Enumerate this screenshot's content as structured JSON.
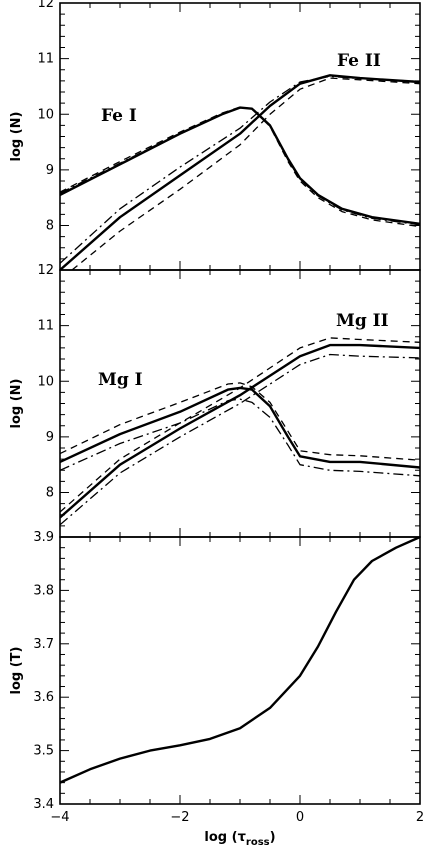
{
  "chart_data": [
    {
      "type": "line",
      "ylabel": "log (N)",
      "xlabel": "",
      "xlim": [
        -4,
        2
      ],
      "ylim": [
        7.2,
        12
      ],
      "yticks": [
        {
          "v": 12,
          "label": "12"
        },
        {
          "v": 11,
          "label": "11"
        },
        {
          "v": 10,
          "label": "10"
        },
        {
          "v": 9,
          "label": "9"
        },
        {
          "v": 8,
          "label": "8"
        }
      ],
      "annotations": [
        {
          "text": "Fe I",
          "x": -3.35,
          "y": 10.0
        },
        {
          "text": "Fe II",
          "x": 0.55,
          "y": 10.95
        }
      ],
      "series": [
        {
          "style": "solid",
          "x": [
            -4,
            -3,
            -2,
            -1.3,
            -1,
            -0.8,
            -0.5,
            -0.2,
            0,
            0.3,
            0.7,
            1.2,
            2
          ],
          "y": [
            8.55,
            9.1,
            9.65,
            10.0,
            10.12,
            10.1,
            9.8,
            9.2,
            8.85,
            8.55,
            8.3,
            8.15,
            8.03
          ]
        },
        {
          "style": "dash",
          "x": [
            -4,
            -3,
            -2,
            -1.3,
            -1,
            -0.8,
            -0.5,
            -0.2,
            0,
            0.3,
            0.7,
            1.2,
            2
          ],
          "y": [
            8.6,
            9.15,
            9.68,
            10.02,
            10.13,
            10.1,
            9.78,
            9.15,
            8.8,
            8.5,
            8.25,
            8.1,
            7.98
          ]
        },
        {
          "style": "dashdot",
          "x": [
            -4,
            -3,
            -2,
            -1.3,
            -1,
            -0.8,
            -0.5,
            -0.2,
            0,
            0.3,
            0.7,
            1.2,
            2
          ],
          "y": [
            8.58,
            9.12,
            9.66,
            10.01,
            10.12,
            10.1,
            9.79,
            9.18,
            8.83,
            8.53,
            8.28,
            8.13,
            8.01
          ]
        },
        {
          "style": "solid",
          "x": [
            -4,
            -3,
            -2,
            -1,
            -0.5,
            0,
            0.5,
            1,
            2
          ],
          "y": [
            7.2,
            8.15,
            8.9,
            9.65,
            10.15,
            10.55,
            10.7,
            10.65,
            10.58
          ]
        },
        {
          "style": "dash",
          "x": [
            -3.8,
            -3,
            -2,
            -1,
            -0.5,
            0,
            0.5,
            1,
            2
          ],
          "y": [
            7.2,
            7.9,
            8.65,
            9.45,
            10.0,
            10.45,
            10.65,
            10.62,
            10.55
          ]
        },
        {
          "style": "dashdot",
          "x": [
            -4,
            -3,
            -2,
            -1,
            -0.5,
            0,
            0.5,
            1,
            2
          ],
          "y": [
            7.32,
            8.3,
            9.05,
            9.75,
            10.22,
            10.58,
            10.68,
            10.64,
            10.59
          ]
        }
      ]
    },
    {
      "type": "line",
      "ylabel": "log (N)",
      "xlabel": "",
      "xlim": [
        -4,
        2
      ],
      "ylim": [
        7.2,
        12
      ],
      "yticks": [
        {
          "v": 12,
          "label": "12"
        },
        {
          "v": 11,
          "label": "11"
        },
        {
          "v": 10,
          "label": "10"
        },
        {
          "v": 9,
          "label": "9"
        },
        {
          "v": 8,
          "label": "8"
        }
      ],
      "annotations": [
        {
          "text": "Mg I",
          "x": -3.4,
          "y": 9.9
        },
        {
          "text": "Mg II",
          "x": 0.55,
          "y": 11.0
        }
      ],
      "series": [
        {
          "style": "solid",
          "x": [
            -4,
            -3,
            -2,
            -1.2,
            -1,
            -0.8,
            -0.5,
            -0.2,
            0,
            0.5,
            1,
            2
          ],
          "y": [
            8.55,
            9.05,
            9.45,
            9.85,
            9.88,
            9.85,
            9.55,
            9.0,
            8.65,
            8.55,
            8.55,
            8.45
          ]
        },
        {
          "style": "dash",
          "x": [
            -4,
            -3,
            -2,
            -1.2,
            -1,
            -0.8,
            -0.5,
            -0.2,
            0,
            0.5,
            1,
            2
          ],
          "y": [
            8.7,
            9.22,
            9.62,
            9.95,
            9.97,
            9.9,
            9.62,
            9.1,
            8.75,
            8.68,
            8.66,
            8.58
          ]
        },
        {
          "style": "dashdot",
          "x": [
            -4,
            -3,
            -2,
            -1.2,
            -1,
            -0.8,
            -0.5,
            -0.2,
            0,
            0.5,
            1,
            2
          ],
          "y": [
            8.4,
            8.88,
            9.25,
            9.65,
            9.68,
            9.62,
            9.35,
            8.85,
            8.5,
            8.4,
            8.38,
            8.3
          ]
        },
        {
          "style": "solid",
          "x": [
            -4,
            -3,
            -2,
            -1,
            0,
            0.5,
            1,
            2
          ],
          "y": [
            7.55,
            8.5,
            9.15,
            9.75,
            10.45,
            10.65,
            10.65,
            10.6
          ]
        },
        {
          "style": "dash",
          "x": [
            -4,
            -3,
            -2,
            -1,
            0,
            0.5,
            1,
            2
          ],
          "y": [
            7.65,
            8.6,
            9.25,
            9.88,
            10.6,
            10.78,
            10.75,
            10.7
          ]
        },
        {
          "style": "dashdot",
          "x": [
            -4,
            -3,
            -2,
            -1,
            0,
            0.5,
            1,
            2
          ],
          "y": [
            7.42,
            8.35,
            9.0,
            9.6,
            10.3,
            10.48,
            10.45,
            10.42
          ]
        }
      ]
    },
    {
      "type": "line",
      "ylabel": "log (T)",
      "xlabel": "log (τ",
      "xlabel_sub": "ross",
      "xlabel_end": ")",
      "xlim": [
        -4,
        2
      ],
      "ylim": [
        3.4,
        3.9
      ],
      "xticks": [
        {
          "v": -4,
          "label": "−4"
        },
        {
          "v": -2,
          "label": "−2"
        },
        {
          "v": 0,
          "label": "0"
        },
        {
          "v": 2,
          "label": "2"
        }
      ],
      "yticks": [
        {
          "v": 3.9,
          "label": "3.9"
        },
        {
          "v": 3.8,
          "label": "3.8"
        },
        {
          "v": 3.7,
          "label": "3.7"
        },
        {
          "v": 3.6,
          "label": "3.6"
        },
        {
          "v": 3.5,
          "label": "3.5"
        },
        {
          "v": 3.4,
          "label": "3.4"
        }
      ],
      "annotations": [],
      "series": [
        {
          "style": "solid",
          "x": [
            -4,
            -3.5,
            -3,
            -2.5,
            -2,
            -1.5,
            -1,
            -0.5,
            0,
            0.3,
            0.6,
            0.9,
            1.2,
            1.6,
            2
          ],
          "y": [
            3.44,
            3.465,
            3.485,
            3.5,
            3.51,
            3.522,
            3.542,
            3.58,
            3.64,
            3.695,
            3.76,
            3.82,
            3.855,
            3.88,
            3.9
          ]
        }
      ]
    }
  ]
}
